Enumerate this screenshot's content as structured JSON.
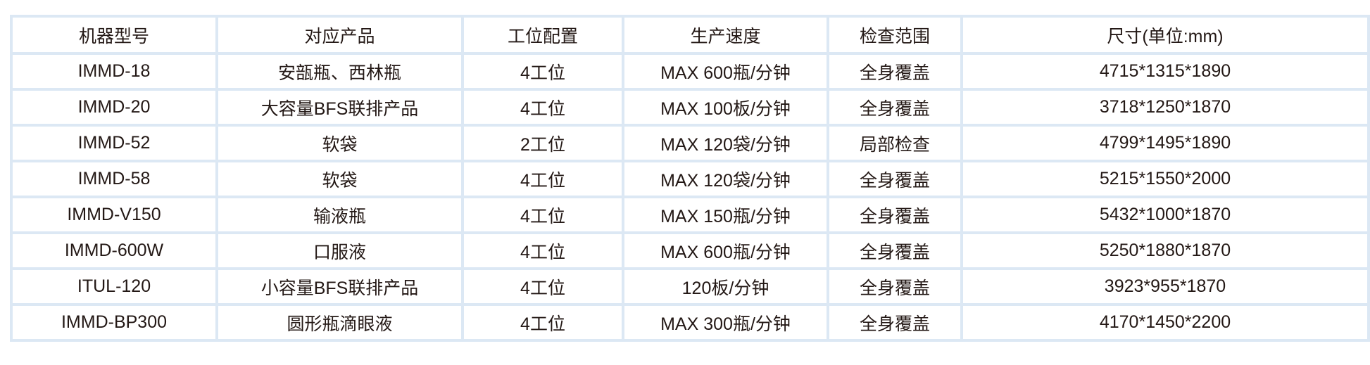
{
  "table": {
    "headers": [
      "机器型号",
      "对应产品",
      "工位配置",
      "生产速度",
      "检查范围",
      "尺寸(单位:mm)"
    ],
    "rows": [
      [
        "IMMD-18",
        "安瓿瓶、西林瓶",
        "4工位",
        "MAX 600瓶/分钟",
        "全身覆盖",
        "4715*1315*1890"
      ],
      [
        "IMMD-20",
        "大容量BFS联排产品",
        "4工位",
        "MAX 100板/分钟",
        "全身覆盖",
        "3718*1250*1870"
      ],
      [
        "IMMD-52",
        "软袋",
        "2工位",
        "MAX 120袋/分钟",
        "局部检查",
        "4799*1495*1890"
      ],
      [
        "IMMD-58",
        "软袋",
        "4工位",
        "MAX 120袋/分钟",
        "全身覆盖",
        "5215*1550*2000"
      ],
      [
        "IMMD-V150",
        "输液瓶",
        "4工位",
        "MAX 150瓶/分钟",
        "全身覆盖",
        "5432*1000*1870"
      ],
      [
        "IMMD-600W",
        "口服液",
        "4工位",
        "MAX 600瓶/分钟",
        "全身覆盖",
        "5250*1880*1870"
      ],
      [
        "ITUL-120",
        "小容量BFS联排产品",
        "4工位",
        "120板/分钟",
        "全身覆盖",
        "3923*955*1870"
      ],
      [
        "IMMD-BP300",
        "圆形瓶滴眼液",
        "4工位",
        "MAX 300瓶/分钟",
        "全身覆盖",
        "4170*1450*2200"
      ]
    ],
    "border_color": "#dce8f4",
    "text_color": "#231815"
  }
}
